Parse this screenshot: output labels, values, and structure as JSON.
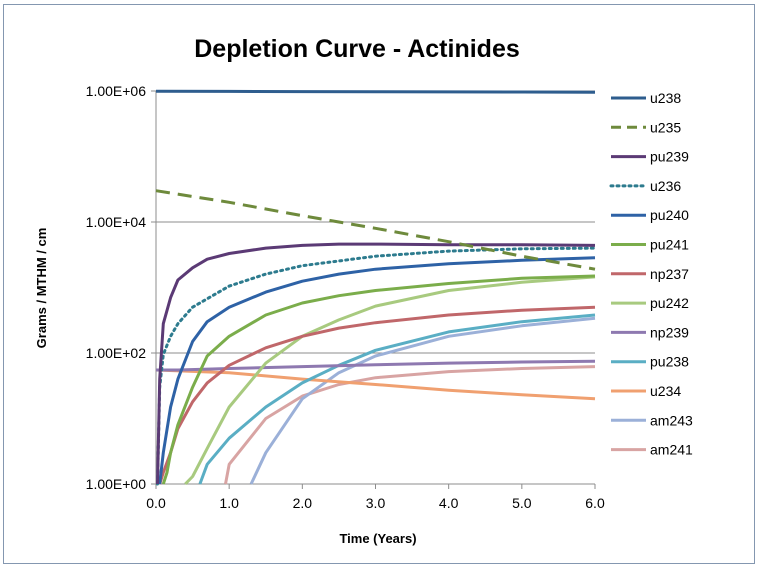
{
  "chart_data": {
    "type": "line",
    "title": "Depletion Curve - Actinides",
    "xlabel": "Time (Years)",
    "ylabel": "Grams / MTHM / cm",
    "y_scale": "log",
    "xlim": [
      0,
      6
    ],
    "ylim": [
      1,
      1000000
    ],
    "x_ticks": [
      "0.0",
      "1.0",
      "2.0",
      "3.0",
      "4.0",
      "5.0",
      "6.0"
    ],
    "y_ticks": [
      "1.00E+00",
      "1.00E+02",
      "1.00E+04",
      "1.00E+06"
    ],
    "legend_position": "right",
    "grid": "horizontal",
    "series": [
      {
        "name": "u238",
        "color": "#2e5d8e",
        "dash": "solid",
        "x": [
          0,
          1,
          2,
          3,
          4,
          5,
          6
        ],
        "y": [
          990000,
          985000,
          980000,
          975000,
          970000,
          965000,
          960000
        ]
      },
      {
        "name": "u235",
        "color": "#6e8a3c",
        "dash": "dashed",
        "x": [
          0,
          1,
          2,
          3,
          4,
          5,
          6
        ],
        "y": [
          30000,
          20000,
          12500,
          8000,
          5000,
          3000,
          1900
        ]
      },
      {
        "name": "pu239",
        "color": "#5b3a75",
        "dash": "solid",
        "x": [
          0.02,
          0.05,
          0.1,
          0.2,
          0.3,
          0.5,
          0.7,
          1.0,
          1.5,
          2.0,
          2.5,
          3.0,
          4.0,
          5.0,
          6.0
        ],
        "y": [
          1,
          40,
          280,
          700,
          1300,
          2000,
          2700,
          3300,
          4000,
          4400,
          4600,
          4600,
          4500,
          4500,
          4400
        ]
      },
      {
        "name": "u236",
        "color": "#2d7b8e",
        "dash": "dotted",
        "x": [
          0.02,
          0.05,
          0.1,
          0.2,
          0.3,
          0.5,
          1.0,
          1.5,
          2.0,
          3.0,
          4.0,
          5.0,
          6.0
        ],
        "y": [
          1,
          30,
          95,
          180,
          280,
          500,
          1050,
          1600,
          2150,
          3000,
          3600,
          3900,
          4000
        ]
      },
      {
        "name": "pu240",
        "color": "#2e62a6",
        "dash": "solid",
        "x": [
          0.05,
          0.1,
          0.2,
          0.3,
          0.5,
          0.7,
          1.0,
          1.5,
          2.0,
          2.5,
          3.0,
          4.0,
          5.0,
          6.0
        ],
        "y": [
          1,
          3,
          15,
          40,
          150,
          300,
          500,
          850,
          1250,
          1600,
          1900,
          2300,
          2600,
          2850
        ]
      },
      {
        "name": "pu241",
        "color": "#7bad4b",
        "dash": "solid",
        "x": [
          0.1,
          0.15,
          0.2,
          0.3,
          0.5,
          0.7,
          1.0,
          1.5,
          2.0,
          2.5,
          3.0,
          4.0,
          5.0,
          6.0
        ],
        "y": [
          1,
          1.5,
          3,
          8,
          30,
          90,
          180,
          380,
          580,
          750,
          900,
          1150,
          1380,
          1500
        ]
      },
      {
        "name": "np237",
        "color": "#c0676a",
        "dash": "solid",
        "x": [
          0.05,
          0.1,
          0.2,
          0.3,
          0.5,
          0.7,
          1.0,
          1.5,
          2.0,
          2.5,
          3.0,
          4.0,
          5.0,
          6.0
        ],
        "y": [
          1,
          1.5,
          3,
          7,
          18,
          35,
          65,
          120,
          180,
          240,
          290,
          380,
          450,
          500
        ]
      },
      {
        "name": "pu242",
        "color": "#a8ca7f",
        "dash": "solid",
        "x": [
          0.4,
          0.5,
          0.7,
          1.0,
          1.5,
          2.0,
          2.5,
          3.0,
          4.0,
          5.0,
          6.0
        ],
        "y": [
          1,
          1.3,
          3.5,
          15,
          70,
          180,
          320,
          520,
          900,
          1200,
          1450
        ]
      },
      {
        "name": "np239",
        "color": "#8e79b0",
        "dash": "solid",
        "x": [
          0,
          0.3,
          1.0,
          2.0,
          3.0,
          4.0,
          5.0,
          6.0
        ],
        "y": [
          55,
          55,
          58,
          62,
          66,
          70,
          73,
          75
        ]
      },
      {
        "name": "pu238",
        "color": "#5aaec4",
        "dash": "solid",
        "x": [
          0.6,
          0.7,
          1.0,
          1.5,
          2.0,
          2.5,
          3.0,
          4.0,
          5.0,
          6.0
        ],
        "y": [
          1,
          2,
          5,
          15,
          35,
          65,
          110,
          210,
          300,
          380
        ]
      },
      {
        "name": "u234",
        "color": "#f0a070",
        "dash": "solid",
        "x": [
          0,
          1,
          2,
          3,
          4,
          5,
          6
        ],
        "y": [
          55,
          50,
          40,
          33,
          27,
          23,
          20
        ]
      },
      {
        "name": "am243",
        "color": "#9bb0d8",
        "dash": "solid",
        "x": [
          1.3,
          1.5,
          2.0,
          2.5,
          3.0,
          4.0,
          5.0,
          6.0
        ],
        "y": [
          1,
          3,
          20,
          50,
          90,
          180,
          260,
          340
        ]
      },
      {
        "name": "am241",
        "color": "#d8a4a3",
        "dash": "solid",
        "x": [
          0.95,
          1.0,
          1.5,
          2.0,
          2.5,
          3.0,
          4.0,
          5.0,
          6.0
        ],
        "y": [
          1,
          2,
          10,
          22,
          33,
          42,
          52,
          58,
          62
        ]
      }
    ]
  }
}
